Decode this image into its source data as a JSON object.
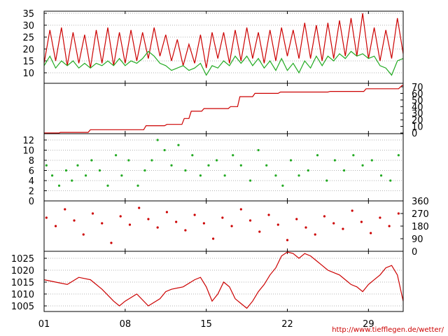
{
  "colors": {
    "red": "#cc0000",
    "green": "#22aa22",
    "grid": "#9a9a9a",
    "axis": "#000000"
  },
  "credit": "http://www.tiefflegen.de/wetter/",
  "x_axis": {
    "range": [
      1,
      32
    ],
    "ticks": [
      {
        "pos": 1,
        "label": "01"
      },
      {
        "pos": 8,
        "label": "08"
      },
      {
        "pos": 15,
        "label": "15"
      },
      {
        "pos": 22,
        "label": "22"
      },
      {
        "pos": 29,
        "label": "29"
      }
    ]
  },
  "chart_data": [
    {
      "type": "line",
      "panel": "temperature",
      "xlim": [
        1,
        32
      ],
      "ylim": [
        5,
        36
      ],
      "y_ticks": [
        10,
        15,
        20,
        25,
        30,
        35
      ],
      "y_tick_labels": [
        "10",
        "15",
        "20",
        "25",
        "30",
        "35"
      ],
      "y_axis_side": "left",
      "grid": true,
      "series": [
        {
          "color": "red",
          "x": [
            1.0,
            1.5,
            2.0,
            2.5,
            3.0,
            3.5,
            4.0,
            4.5,
            5.0,
            5.5,
            6.0,
            6.5,
            7.0,
            7.5,
            8.0,
            8.5,
            9.0,
            9.5,
            10.0,
            10.5,
            11.0,
            11.5,
            12.0,
            12.5,
            13.0,
            13.5,
            14.0,
            14.5,
            15.0,
            15.5,
            16.0,
            16.5,
            17.0,
            17.5,
            18.0,
            18.5,
            19.0,
            19.5,
            20.0,
            20.5,
            21.0,
            21.5,
            22.0,
            22.5,
            23.0,
            23.5,
            24.0,
            24.5,
            25.0,
            25.5,
            26.0,
            26.5,
            27.0,
            27.5,
            28.0,
            28.5,
            29.0,
            29.5,
            30.0,
            30.5,
            31.0,
            31.5,
            32.0
          ],
          "y": [
            14,
            28,
            15,
            29,
            13,
            27,
            14,
            26,
            12,
            28,
            14,
            29,
            13,
            27,
            14,
            28,
            15,
            27,
            16,
            29,
            17,
            26,
            15,
            24,
            13,
            22,
            14,
            26,
            12,
            27,
            16,
            27,
            14,
            28,
            15,
            29,
            16,
            27,
            14,
            28,
            15,
            29,
            17,
            28,
            16,
            31,
            16,
            30,
            15,
            31,
            16,
            32,
            17,
            33,
            17,
            35,
            16,
            29,
            15,
            28,
            16,
            33,
            18
          ]
        },
        {
          "color": "green",
          "x": [
            1.0,
            1.5,
            2.0,
            2.5,
            3.0,
            3.5,
            4.0,
            4.5,
            5.0,
            5.5,
            6.0,
            6.5,
            7.0,
            7.5,
            8.0,
            8.5,
            9.0,
            9.5,
            10.0,
            10.5,
            11.0,
            11.5,
            12.0,
            12.5,
            13.0,
            13.5,
            14.0,
            14.5,
            15.0,
            15.5,
            16.0,
            16.5,
            17.0,
            17.5,
            18.0,
            18.5,
            19.0,
            19.5,
            20.0,
            20.5,
            21.0,
            21.5,
            22.0,
            22.5,
            23.0,
            23.5,
            24.0,
            24.5,
            25.0,
            25.5,
            26.0,
            26.5,
            27.0,
            27.5,
            28.0,
            28.5,
            29.0,
            29.5,
            30.0,
            30.5,
            31.0,
            31.5,
            32.0
          ],
          "y": [
            13,
            17,
            12,
            15,
            13,
            15,
            12,
            14,
            12,
            14,
            13,
            15,
            13,
            16,
            13,
            15,
            14,
            16,
            19,
            17,
            14,
            13,
            11,
            12,
            13,
            11,
            12,
            14,
            9,
            13,
            12,
            15,
            13,
            17,
            14,
            17,
            13,
            16,
            12,
            15,
            11,
            16,
            11,
            14,
            10,
            15,
            12,
            17,
            13,
            17,
            15,
            18,
            16,
            19,
            17,
            18,
            16,
            17,
            13,
            12,
            9,
            15,
            16
          ]
        }
      ]
    },
    {
      "type": "line",
      "panel": "rain-cumulative",
      "xlim": [
        1,
        32
      ],
      "ylim": [
        0,
        72
      ],
      "y_ticks": [
        0,
        10,
        20,
        30,
        40,
        50,
        60,
        70
      ],
      "y_tick_labels": [
        "0",
        "10",
        "20",
        "30",
        "40",
        "50",
        "60",
        "70"
      ],
      "y_axis_side": "right",
      "series": [
        {
          "color": "red",
          "step": true,
          "x": [
            1.0,
            2.3,
            2.4,
            4.8,
            5.0,
            9.6,
            9.8,
            11.4,
            11.6,
            12.9,
            13.1,
            13.5,
            13.7,
            14.6,
            14.8,
            16.9,
            17.1,
            17.7,
            17.9,
            19.0,
            19.2,
            21.2,
            21.4,
            25.5,
            25.7,
            28.6,
            28.8,
            31.6,
            31.9,
            32.0
          ],
          "y": [
            0,
            0,
            1,
            1,
            5,
            5,
            11,
            11,
            13,
            13,
            22,
            22,
            33,
            33,
            37,
            37,
            40,
            40,
            55,
            55,
            60,
            60,
            62,
            62,
            63,
            63,
            67,
            67,
            72,
            72
          ]
        }
      ]
    },
    {
      "type": "scatter",
      "panel": "wind-speed",
      "xlim": [
        1,
        32
      ],
      "ylim": [
        0,
        13
      ],
      "y_ticks": [
        0,
        2,
        4,
        6,
        8,
        10,
        12
      ],
      "y_tick_labels": [
        "0",
        "2",
        "4",
        "6",
        "8",
        "10",
        "12"
      ],
      "y_axis_side": "left",
      "grid": true,
      "series": [
        {
          "color": "green",
          "x": [
            1.2,
            1.7,
            2.3,
            2.9,
            3.4,
            3.9,
            4.6,
            5.1,
            5.8,
            6.5,
            7.2,
            7.7,
            8.3,
            9.1,
            9.7,
            10.3,
            10.8,
            11.4,
            12.0,
            12.6,
            13.2,
            13.8,
            14.5,
            15.2,
            15.9,
            16.6,
            17.3,
            18.0,
            18.8,
            19.5,
            20.2,
            21.0,
            21.6,
            22.3,
            23.0,
            23.8,
            24.6,
            25.4,
            26.1,
            26.9,
            27.7,
            28.5,
            29.3,
            30.1,
            30.9,
            31.6
          ],
          "y": [
            7,
            5,
            3,
            6,
            4,
            7,
            5,
            8,
            6,
            3,
            9,
            5,
            8,
            3,
            6,
            8,
            12,
            10,
            7,
            11,
            6,
            9,
            5,
            7,
            8,
            5,
            9,
            7,
            4,
            10,
            7,
            5,
            3,
            8,
            5,
            6,
            9,
            4,
            8,
            6,
            9,
            7,
            8,
            5,
            4,
            9
          ]
        }
      ]
    },
    {
      "type": "scatter",
      "panel": "wind-direction",
      "xlim": [
        1,
        32
      ],
      "ylim": [
        0,
        360
      ],
      "y_ticks": [
        0,
        90,
        180,
        270,
        360
      ],
      "y_tick_labels": [
        "0",
        "90",
        "180",
        "270",
        "360"
      ],
      "y_axis_side": "right",
      "series": [
        {
          "color": "red",
          "x": [
            1.2,
            2.0,
            2.8,
            3.6,
            4.4,
            5.2,
            6.0,
            6.8,
            7.6,
            8.4,
            9.2,
            10.0,
            10.8,
            11.6,
            12.4,
            13.2,
            14.0,
            14.8,
            15.6,
            16.4,
            17.2,
            18.0,
            18.8,
            19.6,
            20.4,
            21.2,
            22.0,
            22.8,
            23.6,
            24.4,
            25.2,
            26.0,
            26.8,
            27.6,
            28.4,
            29.2,
            30.0,
            30.8,
            31.6
          ],
          "y": [
            240,
            180,
            300,
            220,
            120,
            270,
            200,
            60,
            250,
            190,
            310,
            230,
            170,
            280,
            210,
            150,
            260,
            200,
            90,
            240,
            180,
            300,
            220,
            140,
            260,
            190,
            80,
            230,
            170,
            120,
            250,
            200,
            160,
            290,
            210,
            130,
            240,
            180,
            270
          ]
        }
      ]
    },
    {
      "type": "line",
      "panel": "pressure",
      "xlim": [
        1,
        32
      ],
      "ylim": [
        1002,
        1030
      ],
      "y_ticks": [
        1005,
        1010,
        1015,
        1020,
        1025
      ],
      "y_tick_labels": [
        "1005",
        "1010",
        "1015",
        "1020",
        "1025"
      ],
      "y_axis_side": "left",
      "grid": true,
      "series": [
        {
          "color": "red",
          "x": [
            1.0,
            2.0,
            3.0,
            4.0,
            5.0,
            6.0,
            7.0,
            7.5,
            8.0,
            9.0,
            10.0,
            11.0,
            11.5,
            12.0,
            13.0,
            14.0,
            14.5,
            15.0,
            15.5,
            16.0,
            16.5,
            17.0,
            17.5,
            18.0,
            18.5,
            19.0,
            19.5,
            20.0,
            20.5,
            21.0,
            21.5,
            22.0,
            22.5,
            23.0,
            23.5,
            24.0,
            24.5,
            25.0,
            25.5,
            26.0,
            26.5,
            27.0,
            27.5,
            28.0,
            28.5,
            29.0,
            29.5,
            30.0,
            30.5,
            31.0,
            31.5,
            32.0
          ],
          "y": [
            1016,
            1015,
            1014,
            1017,
            1016,
            1012,
            1007,
            1005,
            1007,
            1010,
            1005,
            1008,
            1011,
            1012,
            1013,
            1016,
            1017,
            1013,
            1007,
            1010,
            1015,
            1013,
            1008,
            1006,
            1004,
            1007,
            1011,
            1014,
            1018,
            1021,
            1026,
            1029,
            1027,
            1025,
            1027,
            1026,
            1024,
            1022,
            1020,
            1019,
            1018,
            1016,
            1014,
            1013,
            1011,
            1014,
            1016,
            1018,
            1021,
            1022,
            1018,
            1007
          ]
        }
      ]
    }
  ]
}
